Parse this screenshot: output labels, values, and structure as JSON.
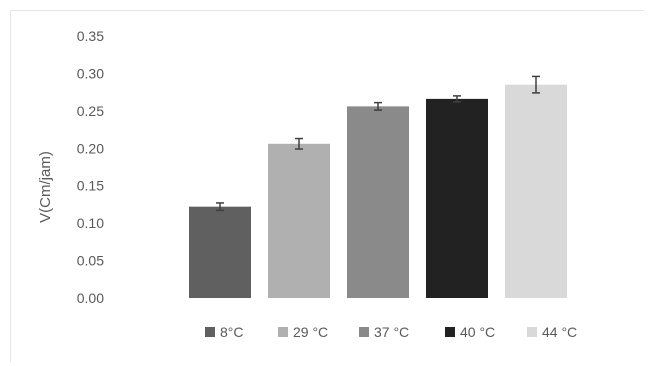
{
  "chart_data": {
    "type": "bar",
    "title": "",
    "xlabel": "",
    "ylabel": "V(Cm/jam)",
    "ylim": [
      0,
      0.35
    ],
    "yticks": [
      "0.00",
      "0.05",
      "0.10",
      "0.15",
      "0.20",
      "0.25",
      "0.30",
      "0.35"
    ],
    "grid": false,
    "legend_position": "bottom",
    "series": [
      {
        "name": "8°C",
        "value": 0.122,
        "error": 0.005,
        "color": "#606060"
      },
      {
        "name": "29 °C",
        "value": 0.206,
        "error": 0.007,
        "color": "#b0b0b0"
      },
      {
        "name": "37 °C",
        "value": 0.256,
        "error": 0.005,
        "color": "#8a8a8a"
      },
      {
        "name": "40 °C",
        "value": 0.266,
        "error": 0.004,
        "color": "#222222"
      },
      {
        "name": "44 °C",
        "value": 0.285,
        "error": 0.011,
        "color": "#d9d9d9"
      }
    ]
  }
}
